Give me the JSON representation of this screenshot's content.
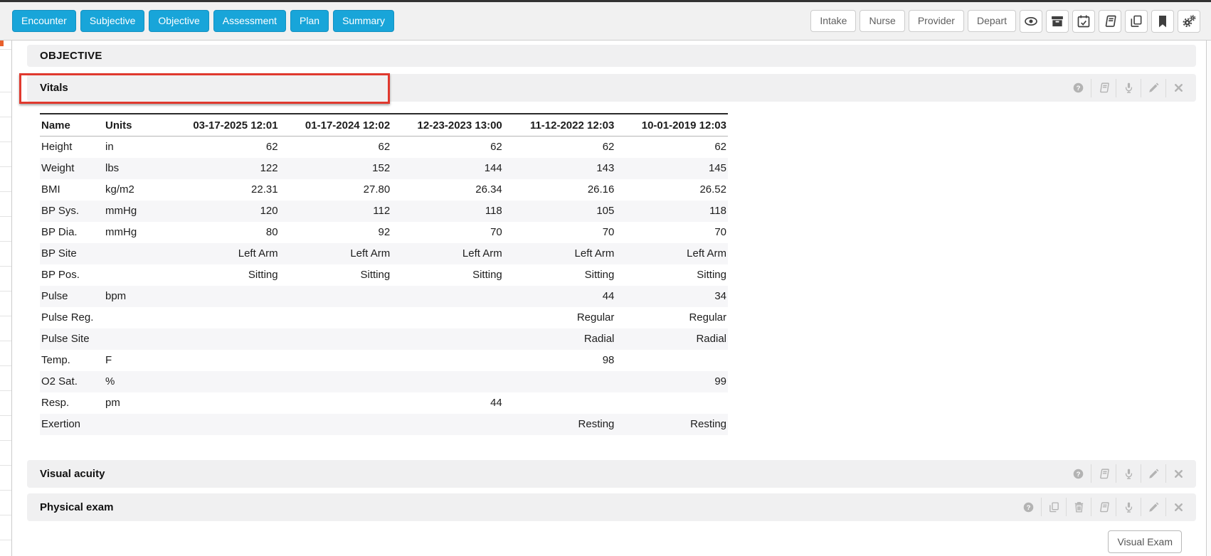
{
  "colors": {
    "accent_blue": "#18a5d9",
    "annotation_red": "#e0392e",
    "panel_header_bg": "#f0f0f1",
    "row_stripe": "#f6f6f8",
    "panel_icon_gray": "#b3b3b3",
    "toolbar_icon_dark": "#3f3f3f"
  },
  "toolbar": {
    "nav_buttons": [
      "Encounter",
      "Subjective",
      "Objective",
      "Assessment",
      "Plan",
      "Summary"
    ],
    "stage_buttons": [
      "Intake",
      "Nurse",
      "Provider",
      "Depart"
    ],
    "icon_buttons": [
      "eye",
      "archive",
      "calendar-check",
      "book",
      "copy",
      "bookmark",
      "cogs"
    ]
  },
  "objective": {
    "title": "OBJECTIVE"
  },
  "vitals": {
    "title": "Vitals",
    "actions": [
      "help",
      "book",
      "microphone",
      "pencil",
      "close"
    ],
    "table": {
      "columns": [
        "Name",
        "Units",
        "03-17-2025 12:01",
        "01-17-2024 12:02",
        "12-23-2023 13:00",
        "11-12-2022 12:03",
        "10-01-2019 12:03"
      ],
      "rows": [
        {
          "name": "Height",
          "units": "in",
          "values": [
            "62",
            "62",
            "62",
            "62",
            "62"
          ]
        },
        {
          "name": "Weight",
          "units": "lbs",
          "values": [
            "122",
            "152",
            "144",
            "143",
            "145"
          ]
        },
        {
          "name": "BMI",
          "units": "kg/m2",
          "values": [
            "22.31",
            "27.80",
            "26.34",
            "26.16",
            "26.52"
          ]
        },
        {
          "name": "BP Sys.",
          "units": "mmHg",
          "values": [
            "120",
            "112",
            "118",
            "105",
            "118"
          ]
        },
        {
          "name": "BP Dia.",
          "units": "mmHg",
          "values": [
            "80",
            "92",
            "70",
            "70",
            "70"
          ]
        },
        {
          "name": "BP Site",
          "units": "",
          "values": [
            "Left Arm",
            "Left Arm",
            "Left Arm",
            "Left Arm",
            "Left Arm"
          ]
        },
        {
          "name": "BP Pos.",
          "units": "",
          "values": [
            "Sitting",
            "Sitting",
            "Sitting",
            "Sitting",
            "Sitting"
          ]
        },
        {
          "name": "Pulse",
          "units": "bpm",
          "values": [
            "",
            "",
            "",
            "44",
            "34"
          ]
        },
        {
          "name": "Pulse Reg.",
          "units": "",
          "values": [
            "",
            "",
            "",
            "Regular",
            "Regular"
          ]
        },
        {
          "name": "Pulse Site",
          "units": "",
          "values": [
            "",
            "",
            "",
            "Radial",
            "Radial"
          ]
        },
        {
          "name": "Temp.",
          "units": "F",
          "values": [
            "",
            "",
            "",
            "98",
            ""
          ]
        },
        {
          "name": "O2 Sat.",
          "units": "%",
          "values": [
            "",
            "",
            "",
            "",
            "99"
          ]
        },
        {
          "name": "Resp.",
          "units": "pm",
          "values": [
            "",
            "",
            "44",
            "",
            ""
          ]
        },
        {
          "name": "Exertion",
          "units": "",
          "values": [
            "",
            "",
            "",
            "Resting",
            "Resting"
          ]
        }
      ]
    }
  },
  "visual_acuity": {
    "title": "Visual acuity",
    "actions": [
      "help",
      "book",
      "microphone",
      "pencil",
      "close"
    ]
  },
  "physical_exam": {
    "title": "Physical exam",
    "actions": [
      "help",
      "copy",
      "trash",
      "book",
      "microphone",
      "pencil",
      "close"
    ],
    "visual_exam_button": "Visual Exam"
  },
  "annotation": {
    "highlighted_section": "Vitals"
  }
}
